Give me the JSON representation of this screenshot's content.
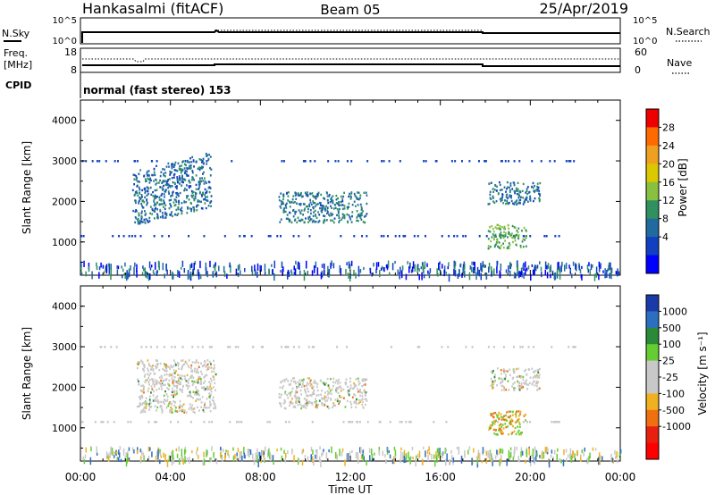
{
  "header": {
    "station": "Hankasalmi (fitACF)",
    "beam": "Beam 05",
    "date": "25/Apr/2019"
  },
  "param_panels": {
    "nsky_label": "N.Sky",
    "nsearch_label": "N.Search",
    "nsky_ticks": [
      "10^5",
      "10^0"
    ],
    "nsky_right_ticks": [
      "10^5",
      "10^0"
    ],
    "freq_label_1": "Freq.",
    "freq_label_2": "[MHz]",
    "freq_ticks": [
      "18",
      "8"
    ],
    "nave_label": "Nave",
    "nave_ticks": [
      "60",
      "0"
    ],
    "cpid_label": "CPID",
    "cpid_text": "normal (fast stereo) 153"
  },
  "chart_data": [
    {
      "type": "heatmap",
      "title": "",
      "ylabel": "Slant Range [km]",
      "xlabel": "",
      "xlim": [
        "00:00",
        "24:00"
      ],
      "ylim": [
        180,
        4500
      ],
      "y_ticks": [
        "4000",
        "3000",
        "2000",
        "1000"
      ],
      "colorbar_label": "Power [dB]",
      "colorbar_ticks": [
        "28",
        "24",
        "20",
        "16",
        "12",
        "8",
        "4"
      ],
      "colorbar_colors": [
        "#ee0000",
        "#ff6a00",
        "#f0a020",
        "#dcc800",
        "#88c040",
        "#309060",
        "#206aa0",
        "#1040c0",
        "#0000ff"
      ],
      "regions": [
        {
          "t_start": 2.3,
          "t_end": 5.8,
          "r_start": 1650,
          "r_end": 3000,
          "value": 8
        },
        {
          "t_start": 8.8,
          "t_end": 12.7,
          "r_start": 1500,
          "r_end": 2250,
          "value": 9
        },
        {
          "t_start": 18.1,
          "t_end": 20.4,
          "r_start": 1950,
          "r_end": 2500,
          "value": 8
        },
        {
          "t_start": 18.1,
          "t_end": 19.8,
          "r_start": 850,
          "r_end": 1450,
          "value": 14
        }
      ]
    },
    {
      "type": "heatmap",
      "title": "",
      "ylabel": "Slant Range [km]",
      "xlabel": "Time UT",
      "xlim": [
        "00:00",
        "24:00"
      ],
      "ylim": [
        180,
        4500
      ],
      "y_ticks": [
        "4000",
        "3000",
        "2000",
        "1000"
      ],
      "x_ticks": [
        "00:00",
        "04:00",
        "08:00",
        "12:00",
        "16:00",
        "20:00",
        "00:00"
      ],
      "colorbar_label": "Velocity [m s⁻¹]",
      "colorbar_ticks": [
        "1000",
        "500",
        "100",
        "25",
        "-25",
        "-100",
        "-500",
        "-1000"
      ],
      "colorbar_colors": [
        "#1a3aa8",
        "#2c6ec0",
        "#2a8a3a",
        "#66cc33",
        "#c8c8c8",
        "#c8c8c8",
        "#f0b020",
        "#f07010",
        "#e82010",
        "#ff0000"
      ],
      "regions": [
        {
          "t_start": 2.5,
          "t_end": 6.0,
          "r_start": 1400,
          "r_end": 2700,
          "value": 0
        },
        {
          "t_start": 8.8,
          "t_end": 12.7,
          "r_start": 1500,
          "r_end": 2250,
          "value": 0
        },
        {
          "t_start": 18.2,
          "t_end": 20.4,
          "r_start": 1950,
          "r_end": 2500,
          "value": 0
        },
        {
          "t_start": 18.1,
          "t_end": 19.8,
          "r_start": 850,
          "r_end": 1450,
          "value": 80
        }
      ]
    }
  ]
}
